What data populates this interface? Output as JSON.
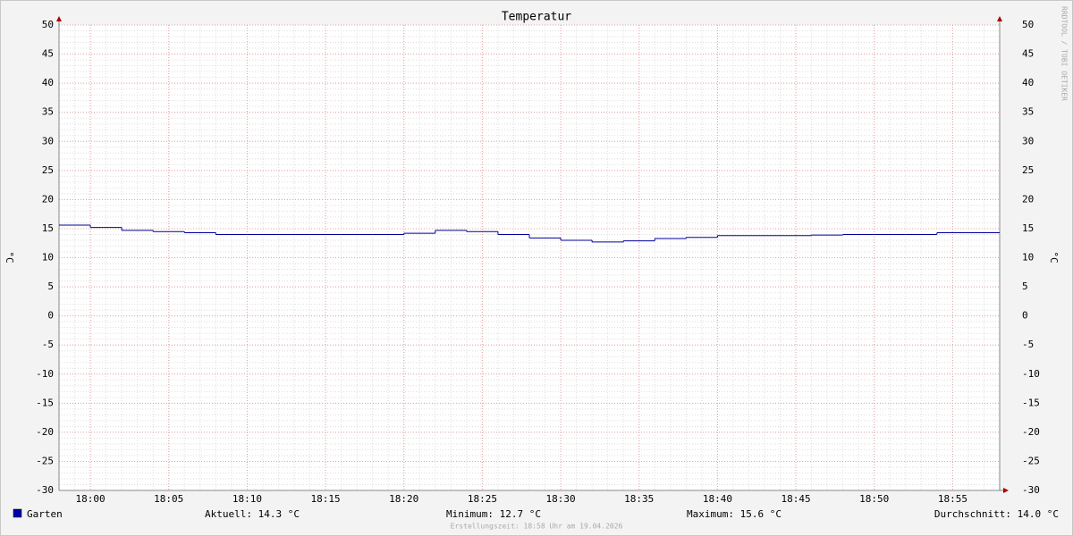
{
  "chart_data": {
    "type": "step",
    "title": "Temperatur",
    "y_label": "°C",
    "y2_label": "°C",
    "watermark": "RRDTOOL / TOBI OETIKER",
    "x": [
      "17:58",
      "18:00",
      "18:02",
      "18:04",
      "18:06",
      "18:08",
      "18:10",
      "18:12",
      "18:14",
      "18:16",
      "18:18",
      "18:20",
      "18:22",
      "18:24",
      "18:26",
      "18:28",
      "18:30",
      "18:32",
      "18:34",
      "18:36",
      "18:38",
      "18:40",
      "18:42",
      "18:44",
      "18:46",
      "18:48",
      "18:50",
      "18:52",
      "18:54",
      "18:56"
    ],
    "series": [
      {
        "name": "Garten",
        "color": "#000099",
        "values": [
          15.6,
          15.2,
          14.7,
          14.5,
          14.3,
          14.0,
          14.0,
          14.0,
          14.0,
          14.0,
          14.0,
          14.2,
          14.7,
          14.5,
          14.0,
          13.4,
          13.0,
          12.7,
          12.9,
          13.3,
          13.5,
          13.8,
          13.8,
          13.8,
          13.9,
          14.0,
          14.0,
          14.0,
          14.3,
          14.3
        ]
      }
    ],
    "xlim": [
      "17:58",
      "18:58"
    ],
    "xticks": [
      "18:00",
      "18:05",
      "18:10",
      "18:15",
      "18:20",
      "18:25",
      "18:30",
      "18:35",
      "18:40",
      "18:45",
      "18:50",
      "18:55"
    ],
    "ylim": [
      -30,
      50
    ],
    "yticks": [
      -30,
      -25,
      -20,
      -15,
      -10,
      -5,
      0,
      5,
      10,
      15,
      20,
      25,
      30,
      35,
      40,
      45,
      50
    ],
    "grid": true,
    "stats": [
      "Aktuell: 14.3 °C",
      "Minimum: 12.7 °C",
      "Maximum: 15.6 °C",
      "Durchschnitt: 14.0 °C"
    ],
    "footer": "Erstellungszeit: 18:58 Uhr am 19.04.2026"
  }
}
